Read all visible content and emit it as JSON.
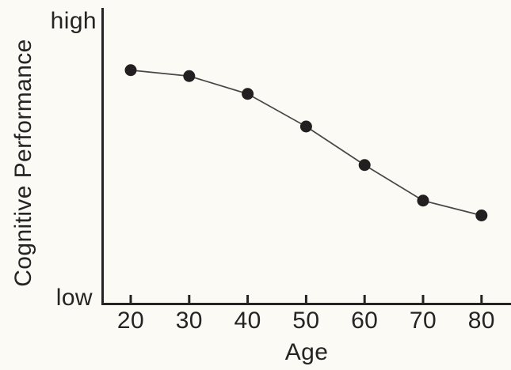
{
  "chart_data": {
    "type": "line",
    "title": "",
    "xlabel": "Age",
    "ylabel": "Cognitive Performance",
    "y_axis_top_label": "high",
    "y_axis_bottom_label": "low",
    "x": [
      20,
      30,
      40,
      50,
      60,
      70,
      80
    ],
    "series": [
      {
        "name": "Cognitive Performance",
        "values": [
          0.79,
          0.77,
          0.71,
          0.6,
          0.47,
          0.35,
          0.3
        ]
      }
    ],
    "ylim": [
      0,
      1
    ],
    "y_scale_type": "qualitative-low-to-high",
    "grid": false,
    "legend": false,
    "marker": "filled-circle",
    "colors": {
      "ink": "#272223",
      "marker": "#231f20",
      "line": "#4a4546",
      "background": "#fbfaf5"
    }
  }
}
